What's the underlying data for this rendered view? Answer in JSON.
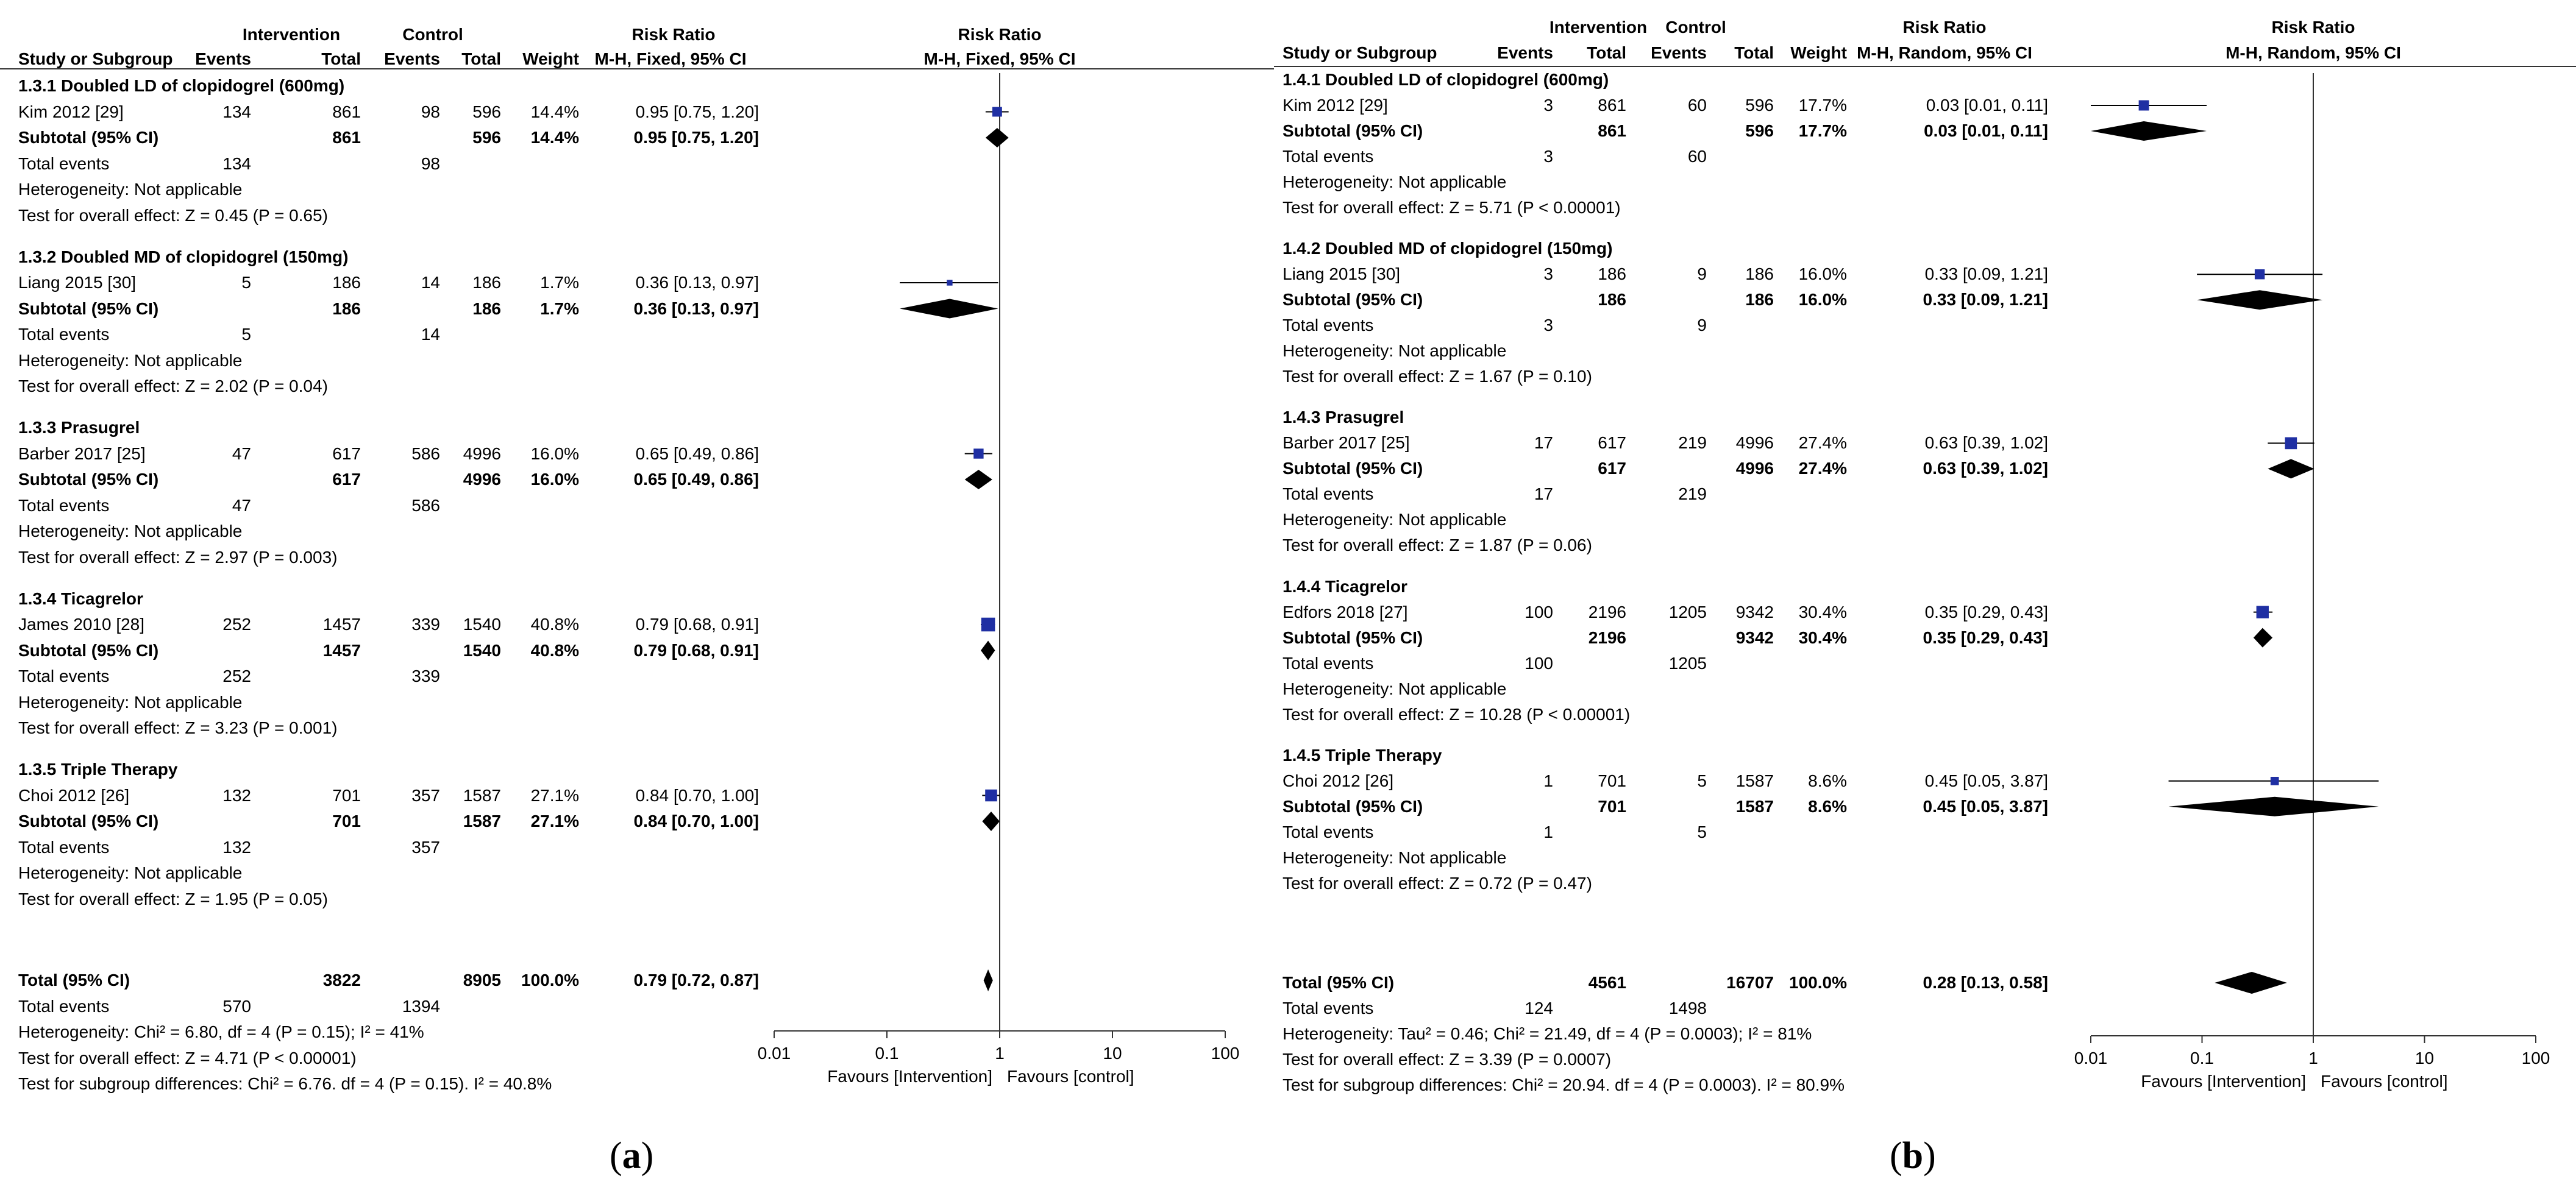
{
  "colors": {
    "marker": "#1f2fa3",
    "diamond": "#000000",
    "line": "#333333"
  },
  "panels": [
    {
      "caption": "a",
      "header": {
        "group1": "Intervention",
        "group2": "Control",
        "rr": "Risk Ratio",
        "rr_plot": "Risk Ratio",
        "study": "Study or Subgroup",
        "events1": "Events",
        "total1": "Total",
        "events2": "Events",
        "total2": "Total",
        "weight": "Weight",
        "method": "M-H, Fixed, 95% CI",
        "method_plot": "M-H, Fixed, 95% CI"
      },
      "axis": {
        "ticks": [
          "0.01",
          "0.1",
          "1",
          "10",
          "100"
        ],
        "favours_left": "Favours [Intervention]",
        "favours_right": "Favours [control]"
      },
      "subgroups": [
        {
          "title": "1.3.1 Doubled LD of clopidogrel (600mg)",
          "studies": [
            {
              "name": "Kim 2012 [29]",
              "e1": "134",
              "t1": "861",
              "e2": "98",
              "t2": "596",
              "w": "14.4%",
              "ci": "0.95 [0.75, 1.20]",
              "rr": 0.95,
              "lo": 0.75,
              "hi": 1.2
            }
          ],
          "subtotal": {
            "label": "Subtotal (95% CI)",
            "t1": "861",
            "t2": "596",
            "w": "14.4%",
            "ci": "0.95 [0.75, 1.20]",
            "rr": 0.95,
            "lo": 0.75,
            "hi": 1.2
          },
          "total_events": {
            "label": "Total events",
            "e1": "134",
            "e2": "98"
          },
          "heterogeneity": "Heterogeneity: Not applicable",
          "test": "Test for overall effect: Z = 0.45 (P = 0.65)"
        },
        {
          "title": "1.3.2 Doubled MD of clopidogrel (150mg)",
          "studies": [
            {
              "name": "Liang 2015 [30]",
              "e1": "5",
              "t1": "186",
              "e2": "14",
              "t2": "186",
              "w": "1.7%",
              "ci": "0.36 [0.13, 0.97]",
              "rr": 0.36,
              "lo": 0.13,
              "hi": 0.97
            }
          ],
          "subtotal": {
            "label": "Subtotal (95% CI)",
            "t1": "186",
            "t2": "186",
            "w": "1.7%",
            "ci": "0.36 [0.13, 0.97]",
            "rr": 0.36,
            "lo": 0.13,
            "hi": 0.97
          },
          "total_events": {
            "label": "Total events",
            "e1": "5",
            "e2": "14"
          },
          "heterogeneity": "Heterogeneity: Not applicable",
          "test": "Test for overall effect: Z = 2.02 (P = 0.04)"
        },
        {
          "title": "1.3.3 Prasugrel",
          "studies": [
            {
              "name": "Barber 2017 [25]",
              "e1": "47",
              "t1": "617",
              "e2": "586",
              "t2": "4996",
              "w": "16.0%",
              "ci": "0.65 [0.49, 0.86]",
              "rr": 0.65,
              "lo": 0.49,
              "hi": 0.86
            }
          ],
          "subtotal": {
            "label": "Subtotal (95% CI)",
            "t1": "617",
            "t2": "4996",
            "w": "16.0%",
            "ci": "0.65 [0.49, 0.86]",
            "rr": 0.65,
            "lo": 0.49,
            "hi": 0.86
          },
          "total_events": {
            "label": "Total events",
            "e1": "47",
            "e2": "586"
          },
          "heterogeneity": "Heterogeneity: Not applicable",
          "test": "Test for overall effect: Z = 2.97 (P = 0.003)"
        },
        {
          "title": "1.3.4 Ticagrelor",
          "studies": [
            {
              "name": "James 2010 [28]",
              "e1": "252",
              "t1": "1457",
              "e2": "339",
              "t2": "1540",
              "w": "40.8%",
              "ci": "0.79 [0.68, 0.91]",
              "rr": 0.79,
              "lo": 0.68,
              "hi": 0.91
            }
          ],
          "subtotal": {
            "label": "Subtotal (95% CI)",
            "t1": "1457",
            "t2": "1540",
            "w": "40.8%",
            "ci": "0.79 [0.68, 0.91]",
            "rr": 0.79,
            "lo": 0.68,
            "hi": 0.91
          },
          "total_events": {
            "label": "Total events",
            "e1": "252",
            "e2": "339"
          },
          "heterogeneity": "Heterogeneity: Not applicable",
          "test": "Test for overall effect: Z = 3.23 (P = 0.001)"
        },
        {
          "title": "1.3.5 Triple Therapy",
          "studies": [
            {
              "name": "Choi 2012 [26]",
              "e1": "132",
              "t1": "701",
              "e2": "357",
              "t2": "1587",
              "w": "27.1%",
              "ci": "0.84 [0.70, 1.00]",
              "rr": 0.84,
              "lo": 0.7,
              "hi": 1.0
            }
          ],
          "subtotal": {
            "label": "Subtotal (95% CI)",
            "t1": "701",
            "t2": "1587",
            "w": "27.1%",
            "ci": "0.84 [0.70, 1.00]",
            "rr": 0.84,
            "lo": 0.7,
            "hi": 1.0
          },
          "total_events": {
            "label": "Total events",
            "e1": "132",
            "e2": "357"
          },
          "heterogeneity": "Heterogeneity: Not applicable",
          "test": "Test for overall effect: Z = 1.95 (P = 0.05)"
        }
      ],
      "overall": {
        "label": "Total (95% CI)",
        "t1": "3822",
        "t2": "8905",
        "w": "100.0%",
        "ci": "0.79 [0.72, 0.87]",
        "rr": 0.79,
        "lo": 0.72,
        "hi": 0.87,
        "events_label": "Total events",
        "e1": "570",
        "e2": "1394",
        "heterogeneity": "Heterogeneity: Chi² = 6.80, df = 4 (P = 0.15); I² = 41%",
        "test": "Test for overall effect: Z = 4.71 (P < 0.00001)",
        "subgroup_test": "Test for subgroup differences: Chi² = 6.76. df = 4 (P = 0.15). I² = 40.8%"
      }
    },
    {
      "caption": "b",
      "header": {
        "group1": "Intervention",
        "group2": "Control",
        "rr": "Risk Ratio",
        "rr_plot": "Risk Ratio",
        "study": "Study or Subgroup",
        "events1": "Events",
        "total1": "Total",
        "events2": "Events",
        "total2": "Total",
        "weight": "Weight",
        "method": "M-H, Random, 95% CI",
        "method_plot": "M-H, Random, 95% CI"
      },
      "axis": {
        "ticks": [
          "0.01",
          "0.1",
          "1",
          "10",
          "100"
        ],
        "favours_left": "Favours [Intervention]",
        "favours_right": "Favours [control]"
      },
      "subgroups": [
        {
          "title": "1.4.1 Doubled LD of clopidogrel (600mg)",
          "studies": [
            {
              "name": "Kim 2012 [29]",
              "e1": "3",
              "t1": "861",
              "e2": "60",
              "t2": "596",
              "w": "17.7%",
              "ci": "0.03 [0.01, 0.11]",
              "rr": 0.03,
              "lo": 0.01,
              "hi": 0.11
            }
          ],
          "subtotal": {
            "label": "Subtotal (95% CI)",
            "t1": "861",
            "t2": "596",
            "w": "17.7%",
            "ci": "0.03 [0.01, 0.11]",
            "rr": 0.03,
            "lo": 0.01,
            "hi": 0.11
          },
          "total_events": {
            "label": "Total events",
            "e1": "3",
            "e2": "60"
          },
          "heterogeneity": "Heterogeneity: Not applicable",
          "test": "Test for overall effect: Z = 5.71 (P < 0.00001)"
        },
        {
          "title": "1.4.2 Doubled MD of clopidogrel (150mg)",
          "studies": [
            {
              "name": "Liang 2015 [30]",
              "e1": "3",
              "t1": "186",
              "e2": "9",
              "t2": "186",
              "w": "16.0%",
              "ci": "0.33 [0.09, 1.21]",
              "rr": 0.33,
              "lo": 0.09,
              "hi": 1.21
            }
          ],
          "subtotal": {
            "label": "Subtotal (95% CI)",
            "t1": "186",
            "t2": "186",
            "w": "16.0%",
            "ci": "0.33 [0.09, 1.21]",
            "rr": 0.33,
            "lo": 0.09,
            "hi": 1.21
          },
          "total_events": {
            "label": "Total events",
            "e1": "3",
            "e2": "9"
          },
          "heterogeneity": "Heterogeneity: Not applicable",
          "test": "Test for overall effect: Z = 1.67 (P = 0.10)"
        },
        {
          "title": "1.4.3 Prasugrel",
          "studies": [
            {
              "name": "Barber 2017 [25]",
              "e1": "17",
              "t1": "617",
              "e2": "219",
              "t2": "4996",
              "w": "27.4%",
              "ci": "0.63 [0.39, 1.02]",
              "rr": 0.63,
              "lo": 0.39,
              "hi": 1.02
            }
          ],
          "subtotal": {
            "label": "Subtotal (95% CI)",
            "t1": "617",
            "t2": "4996",
            "w": "27.4%",
            "ci": "0.63 [0.39, 1.02]",
            "rr": 0.63,
            "lo": 0.39,
            "hi": 1.02
          },
          "total_events": {
            "label": "Total events",
            "e1": "17",
            "e2": "219"
          },
          "heterogeneity": "Heterogeneity: Not applicable",
          "test": "Test for overall effect: Z = 1.87 (P = 0.06)"
        },
        {
          "title": "1.4.4 Ticagrelor",
          "studies": [
            {
              "name": "Edfors 2018 [27]",
              "e1": "100",
              "t1": "2196",
              "e2": "1205",
              "t2": "9342",
              "w": "30.4%",
              "ci": "0.35 [0.29, 0.43]",
              "rr": 0.35,
              "lo": 0.29,
              "hi": 0.43
            }
          ],
          "subtotal": {
            "label": "Subtotal (95% CI)",
            "t1": "2196",
            "t2": "9342",
            "w": "30.4%",
            "ci": "0.35 [0.29, 0.43]",
            "rr": 0.35,
            "lo": 0.29,
            "hi": 0.43
          },
          "total_events": {
            "label": "Total events",
            "e1": "100",
            "e2": "1205"
          },
          "heterogeneity": "Heterogeneity: Not applicable",
          "test": "Test for overall effect: Z = 10.28 (P < 0.00001)"
        },
        {
          "title": "1.4.5 Triple Therapy",
          "studies": [
            {
              "name": "Choi 2012 [26]",
              "e1": "1",
              "t1": "701",
              "e2": "5",
              "t2": "1587",
              "w": "8.6%",
              "ci": "0.45 [0.05, 3.87]",
              "rr": 0.45,
              "lo": 0.05,
              "hi": 3.87
            }
          ],
          "subtotal": {
            "label": "Subtotal (95% CI)",
            "t1": "701",
            "t2": "1587",
            "w": "8.6%",
            "ci": "0.45 [0.05, 3.87]",
            "rr": 0.45,
            "lo": 0.05,
            "hi": 3.87
          },
          "total_events": {
            "label": "Total events",
            "e1": "1",
            "e2": "5"
          },
          "heterogeneity": "Heterogeneity: Not applicable",
          "test": "Test for overall effect: Z = 0.72 (P = 0.47)"
        }
      ],
      "overall": {
        "label": "Total (95% CI)",
        "t1": "4561",
        "t2": "16707",
        "w": "100.0%",
        "ci": "0.28 [0.13, 0.58]",
        "rr": 0.28,
        "lo": 0.13,
        "hi": 0.58,
        "events_label": "Total events",
        "e1": "124",
        "e2": "1498",
        "heterogeneity": "Heterogeneity: Tau² = 0.46; Chi² = 21.49, df = 4 (P = 0.0003); I² = 81%",
        "test": "Test for overall effect: Z = 3.39 (P = 0.0007)",
        "subgroup_test": "Test for subgroup differences: Chi² = 20.94. df = 4 (P = 0.0003). I² = 80.9%"
      }
    }
  ],
  "chart_data": [
    {
      "type": "forest",
      "title": "Risk Ratio M-H, Fixed, 95% CI",
      "xscale": "log",
      "xlim": [
        0.01,
        100
      ],
      "xticks": [
        0.01,
        0.1,
        1,
        10,
        100
      ],
      "xlabel_left": "Favours [Intervention]",
      "xlabel_right": "Favours [control]",
      "studies": [
        {
          "name": "Kim 2012 [29]",
          "rr": 0.95,
          "lo": 0.75,
          "hi": 1.2,
          "weight": 14.4
        },
        {
          "name": "Liang 2015 [30]",
          "rr": 0.36,
          "lo": 0.13,
          "hi": 0.97,
          "weight": 1.7
        },
        {
          "name": "Barber 2017 [25]",
          "rr": 0.65,
          "lo": 0.49,
          "hi": 0.86,
          "weight": 16.0
        },
        {
          "name": "James 2010 [28]",
          "rr": 0.79,
          "lo": 0.68,
          "hi": 0.91,
          "weight": 40.8
        },
        {
          "name": "Choi 2012 [26]",
          "rr": 0.84,
          "lo": 0.7,
          "hi": 1.0,
          "weight": 27.1
        }
      ],
      "pooled": {
        "rr": 0.79,
        "lo": 0.72,
        "hi": 0.87
      }
    },
    {
      "type": "forest",
      "title": "Risk Ratio M-H, Random, 95% CI",
      "xscale": "log",
      "xlim": [
        0.01,
        100
      ],
      "xticks": [
        0.01,
        0.1,
        1,
        10,
        100
      ],
      "xlabel_left": "Favours [Intervention]",
      "xlabel_right": "Favours [control]",
      "studies": [
        {
          "name": "Kim 2012 [29]",
          "rr": 0.03,
          "lo": 0.01,
          "hi": 0.11,
          "weight": 17.7
        },
        {
          "name": "Liang 2015 [30]",
          "rr": 0.33,
          "lo": 0.09,
          "hi": 1.21,
          "weight": 16.0
        },
        {
          "name": "Barber 2017 [25]",
          "rr": 0.63,
          "lo": 0.39,
          "hi": 1.02,
          "weight": 27.4
        },
        {
          "name": "Edfors 2018 [27]",
          "rr": 0.35,
          "lo": 0.29,
          "hi": 0.43,
          "weight": 30.4
        },
        {
          "name": "Choi 2012 [26]",
          "rr": 0.45,
          "lo": 0.05,
          "hi": 3.87,
          "weight": 8.6
        }
      ],
      "pooled": {
        "rr": 0.28,
        "lo": 0.13,
        "hi": 0.58
      }
    }
  ]
}
